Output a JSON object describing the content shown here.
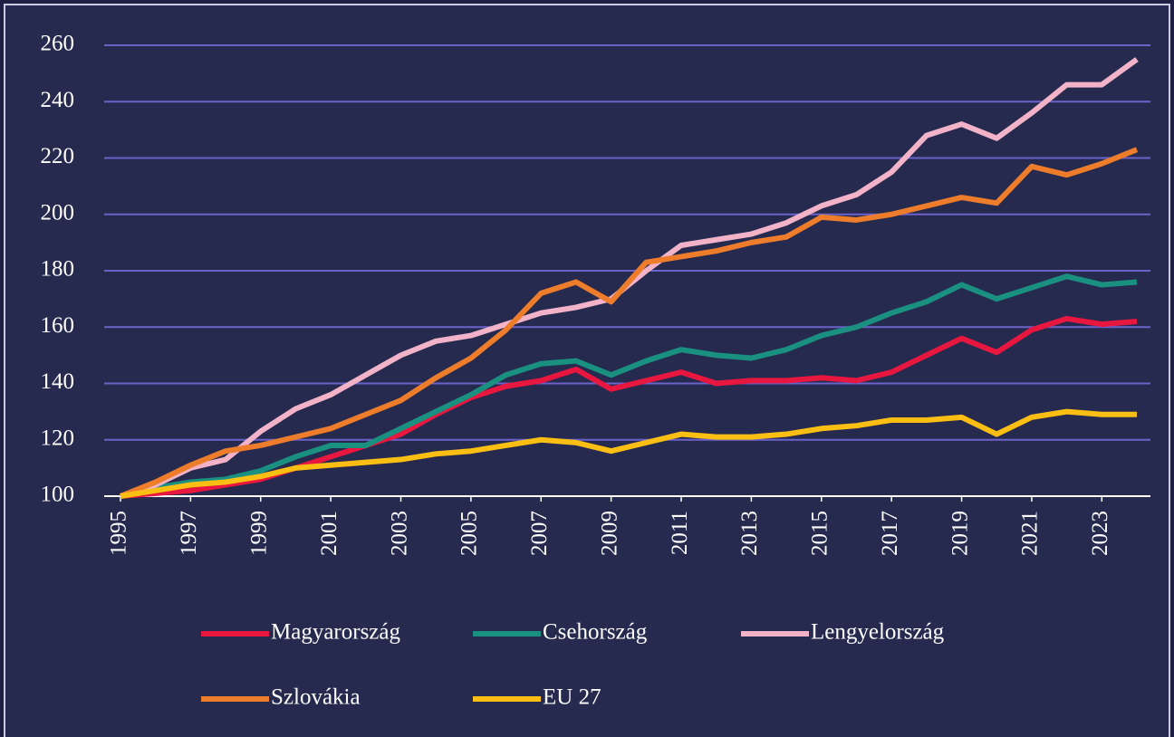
{
  "chart_data": {
    "type": "line",
    "x": [
      1995,
      1996,
      1997,
      1998,
      1999,
      2000,
      2001,
      2002,
      2003,
      2004,
      2005,
      2006,
      2007,
      2008,
      2009,
      2010,
      2011,
      2012,
      2013,
      2014,
      2015,
      2016,
      2017,
      2018,
      2019,
      2020,
      2021,
      2022,
      2023,
      2024
    ],
    "xlim": [
      1995,
      2024
    ],
    "xticks": [
      1995,
      1997,
      1999,
      2001,
      2003,
      2005,
      2007,
      2009,
      2011,
      2013,
      2015,
      2017,
      2019,
      2021,
      2023
    ],
    "ylim": [
      100,
      260
    ],
    "yticks": [
      100,
      120,
      140,
      160,
      180,
      200,
      220,
      240,
      260
    ],
    "grid": true,
    "legend": "bottom",
    "series": [
      {
        "name": "Magyarország",
        "color": "#e8173f",
        "values": [
          100,
          101,
          102,
          104,
          106,
          110,
          114,
          118,
          122,
          129,
          135,
          139,
          141,
          145,
          138,
          141,
          144,
          140,
          141,
          141,
          142,
          141,
          144,
          150,
          156,
          151,
          159,
          163,
          161,
          162
        ]
      },
      {
        "name": "Csehország",
        "color": "#1a9080",
        "values": [
          100,
          103,
          105,
          106,
          109,
          114,
          118,
          118,
          124,
          130,
          136,
          143,
          147,
          148,
          143,
          148,
          152,
          150,
          149,
          152,
          157,
          160,
          165,
          169,
          175,
          170,
          174,
          178,
          175,
          176
        ]
      },
      {
        "name": "Lengyelország",
        "color": "#f2b3c8",
        "values": [
          100,
          104,
          110,
          113,
          123,
          131,
          136,
          143,
          150,
          155,
          157,
          161,
          165,
          167,
          170,
          180,
          189,
          191,
          193,
          197,
          203,
          207,
          215,
          228,
          232,
          227,
          236,
          246,
          246,
          255
        ]
      },
      {
        "name": "Szlovákia",
        "color": "#ee7d2b",
        "values": [
          100,
          105,
          111,
          116,
          118,
          121,
          124,
          129,
          134,
          142,
          149,
          159,
          172,
          176,
          169,
          183,
          185,
          187,
          190,
          192,
          199,
          198,
          200,
          203,
          206,
          204,
          217,
          214,
          218,
          223
        ]
      },
      {
        "name": "EU 27",
        "color": "#fbbf13",
        "values": [
          100,
          102,
          104,
          105,
          107,
          110,
          111,
          112,
          113,
          115,
          116,
          118,
          120,
          119,
          116,
          119,
          122,
          121,
          121,
          122,
          124,
          125,
          127,
          127,
          128,
          122,
          128,
          130,
          129,
          129
        ]
      }
    ]
  }
}
